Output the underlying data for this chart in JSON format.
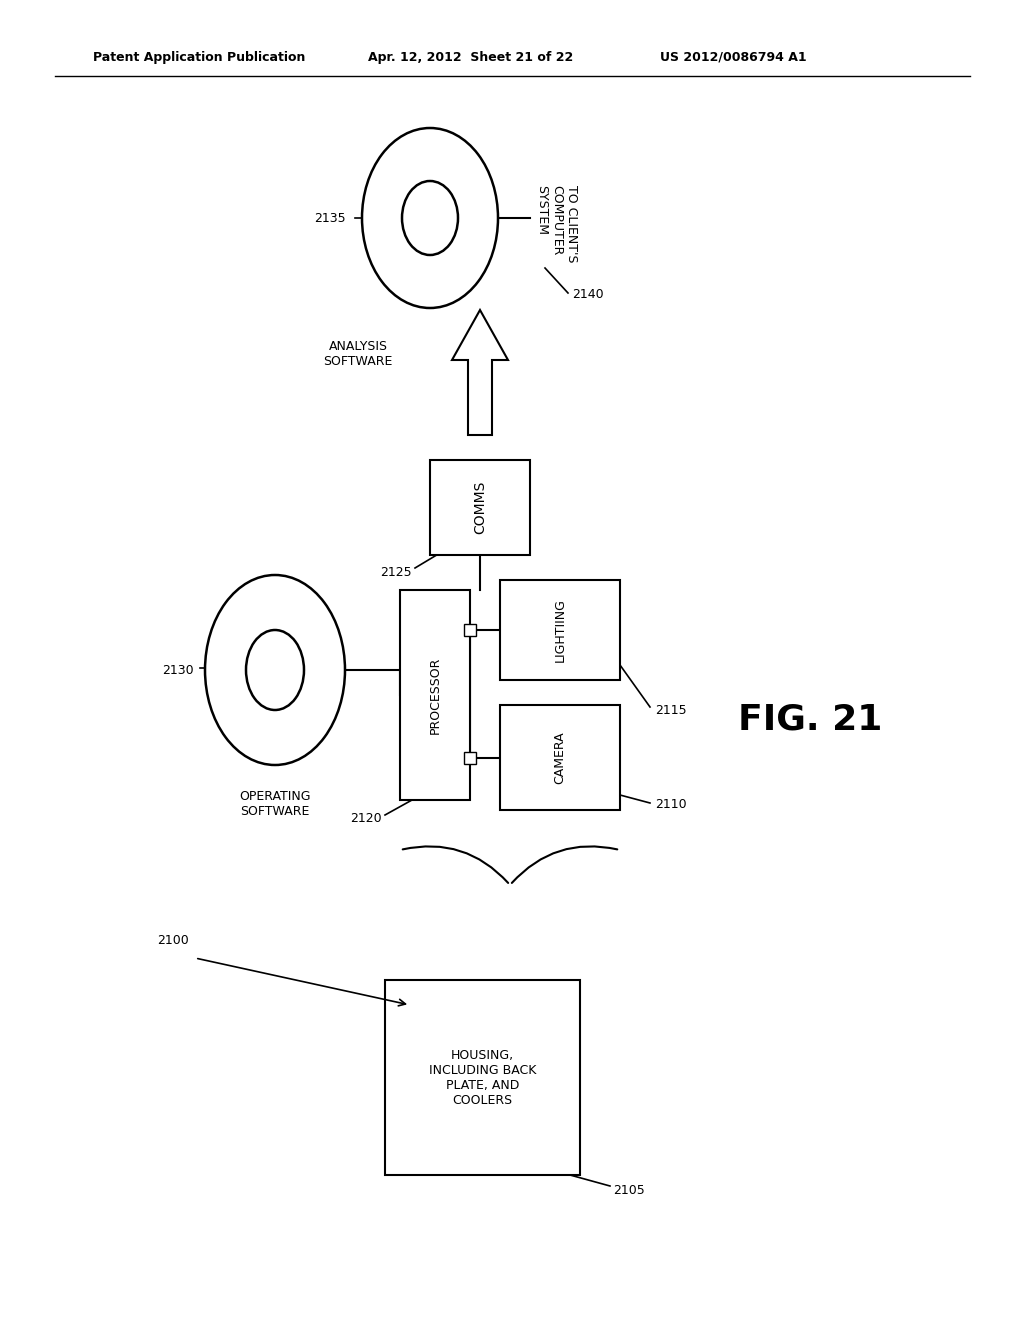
{
  "bg_color": "#ffffff",
  "header_left": "Patent Application Publication",
  "header_mid": "Apr. 12, 2012  Sheet 21 of 22",
  "header_right": "US 2012/0086794 A1",
  "fig_label": "FIG. 21",
  "ref_2100": "2100",
  "ref_2105": "2105",
  "ref_2110": "2110",
  "ref_2115": "2115",
  "ref_2120": "2120",
  "ref_2125": "2125",
  "ref_2130": "2130",
  "ref_2135": "2135",
  "ref_2140": "2140",
  "box_housing_label": "HOUSING,\nINCLUDING BACK\nPLATE, AND\nCOOLERS",
  "box_processor_label": "PROCESSOR",
  "box_lighting_label": "LIGHTIING",
  "box_camera_label": "CAMERA",
  "box_comms_label": "COMMS",
  "label_analysis": "ANALYSIS\nSOFTWARE",
  "label_operating": "OPERATING\nSOFTWARE",
  "label_client": "TO CLIENT'S\nCOMPUTER\nSYSTEM"
}
